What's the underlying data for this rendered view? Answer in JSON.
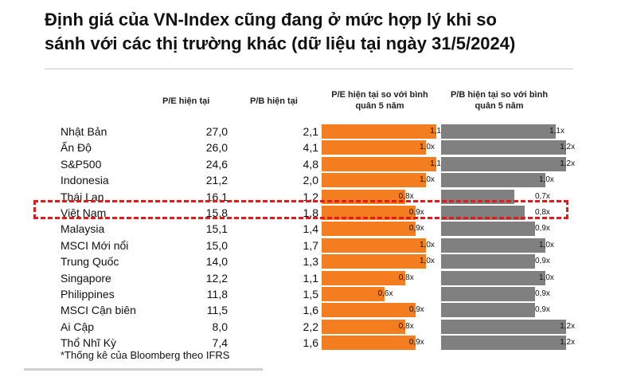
{
  "title_line1": "Định giá của VN-Index cũng đang ở mức hợp lý khi so",
  "title_line2": "sánh với các thị trường khác (dữ liệu tại ngày 31/5/2024)",
  "footnote": "*Thống kê của Bloomberg theo IFRS",
  "colors": {
    "orange": "#f47d20",
    "gray": "#808080",
    "highlight": "#e21a1a"
  },
  "chart_data": {
    "type": "table",
    "columns": [
      "",
      "P/E hiện tại",
      "P/B hiện tại",
      "P/E hiện tại so với bình quân 5 năm",
      "P/B hiện tại so với bình quân 5 năm"
    ],
    "header": {
      "pe": "P/E hiện tại",
      "pb": "P/B hiện tại",
      "pe_rel_line1": "P/E hiện tại so với bình",
      "pe_rel_line2": "quân 5 năm",
      "pb_rel_line1": "P/B hiện tại so với bình",
      "pb_rel_line2": "quân 5 năm"
    },
    "highlighted_row": "Việt Nam",
    "rows": [
      {
        "country": "Nhật Bản",
        "pe": "27,0",
        "pb": "2,1",
        "pe_rel": 1.1,
        "pe_rel_label": "1,1x",
        "pb_rel": 1.1,
        "pb_rel_label": "1,1x"
      },
      {
        "country": "Ấn Độ",
        "pe": "26,0",
        "pb": "4,1",
        "pe_rel": 1.0,
        "pe_rel_label": "1,0x",
        "pb_rel": 1.2,
        "pb_rel_label": "1,2x"
      },
      {
        "country": "S&P500",
        "pe": "24,6",
        "pb": "4,8",
        "pe_rel": 1.1,
        "pe_rel_label": "1,1x",
        "pb_rel": 1.2,
        "pb_rel_label": "1,2x"
      },
      {
        "country": "Indonesia",
        "pe": "21,2",
        "pb": "2,0",
        "pe_rel": 1.0,
        "pe_rel_label": "1,0x",
        "pb_rel": 1.0,
        "pb_rel_label": "1,0x"
      },
      {
        "country": "Thái Lan",
        "pe": "16,1",
        "pb": "1,2",
        "pe_rel": 0.8,
        "pe_rel_label": "0,8x",
        "pb_rel": 0.7,
        "pb_rel_label": "0,7x"
      },
      {
        "country": "Việt Nam",
        "pe": "15,8",
        "pb": "1,8",
        "pe_rel": 0.9,
        "pe_rel_label": "0,9x",
        "pb_rel": 0.8,
        "pb_rel_label": "0,8x"
      },
      {
        "country": "Malaysia",
        "pe": "15,1",
        "pb": "1,4",
        "pe_rel": 0.9,
        "pe_rel_label": "0,9x",
        "pb_rel": 0.9,
        "pb_rel_label": "0,9x"
      },
      {
        "country": "MSCI Mới nổi",
        "pe": "15,0",
        "pb": "1,7",
        "pe_rel": 1.0,
        "pe_rel_label": "1,0x",
        "pb_rel": 1.0,
        "pb_rel_label": "1,0x"
      },
      {
        "country": "Trung Quốc",
        "pe": "14,0",
        "pb": "1,3",
        "pe_rel": 1.0,
        "pe_rel_label": "1,0x",
        "pb_rel": 0.9,
        "pb_rel_label": "0,9x"
      },
      {
        "country": "Singapore",
        "pe": "12,2",
        "pb": "1,1",
        "pe_rel": 0.8,
        "pe_rel_label": "0,8x",
        "pb_rel": 1.0,
        "pb_rel_label": "1,0x"
      },
      {
        "country": "Philippines",
        "pe": "11,8",
        "pb": "1,5",
        "pe_rel": 0.6,
        "pe_rel_label": "0,6x",
        "pb_rel": 0.9,
        "pb_rel_label": "0,9x"
      },
      {
        "country": "MSCI Cận biên",
        "pe": "11,5",
        "pb": "1,6",
        "pe_rel": 0.9,
        "pe_rel_label": "0,9x",
        "pb_rel": 0.9,
        "pb_rel_label": "0,9x"
      },
      {
        "country": "Ai Cập",
        "pe": "8,0",
        "pb": "2,2",
        "pe_rel": 0.8,
        "pe_rel_label": "0,8x",
        "pb_rel": 1.2,
        "pb_rel_label": "1,2x"
      },
      {
        "country": "Thổ Nhĩ Kỳ",
        "pe": "7,4",
        "pb": "1,6",
        "pe_rel": 0.9,
        "pe_rel_label": "0,9x",
        "pb_rel": 1.2,
        "pb_rel_label": "1,2x"
      }
    ]
  }
}
